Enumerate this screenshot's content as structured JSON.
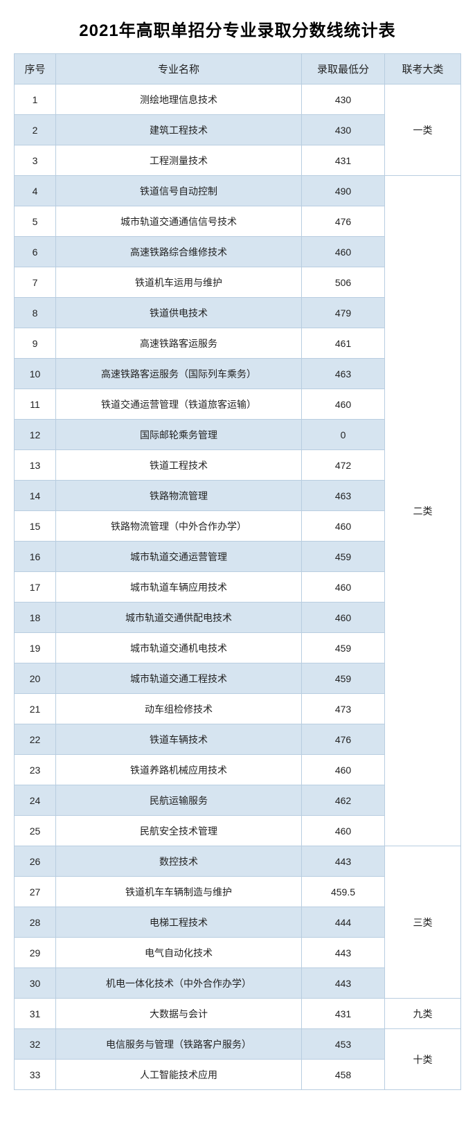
{
  "title": "2021年高职单招分专业录取分数线统计表",
  "headers": {
    "idx": "序号",
    "name": "专业名称",
    "score": "录取最低分",
    "category": "联考大类"
  },
  "colors": {
    "border": "#b8cde0",
    "header_bg": "#d6e4f0",
    "row_even_bg": "#d6e4f0",
    "row_odd_bg": "#ffffff",
    "text": "#222222"
  },
  "categories": [
    {
      "label": "一类",
      "count": 3
    },
    {
      "label": "二类",
      "count": 22
    },
    {
      "label": "三类",
      "count": 5
    },
    {
      "label": "九类",
      "count": 1
    },
    {
      "label": "十类",
      "count": 2
    }
  ],
  "rows": [
    {
      "idx": "1",
      "name": "测绘地理信息技术",
      "score": "430"
    },
    {
      "idx": "2",
      "name": "建筑工程技术",
      "score": "430"
    },
    {
      "idx": "3",
      "name": "工程测量技术",
      "score": "431"
    },
    {
      "idx": "4",
      "name": "铁道信号自动控制",
      "score": "490"
    },
    {
      "idx": "5",
      "name": "城市轨道交通通信信号技术",
      "score": "476"
    },
    {
      "idx": "6",
      "name": "高速铁路综合维修技术",
      "score": "460"
    },
    {
      "idx": "7",
      "name": "铁道机车运用与维护",
      "score": "506"
    },
    {
      "idx": "8",
      "name": "铁道供电技术",
      "score": "479"
    },
    {
      "idx": "9",
      "name": "高速铁路客运服务",
      "score": "461"
    },
    {
      "idx": "10",
      "name": "高速铁路客运服务（国际列车乘务）",
      "score": "463"
    },
    {
      "idx": "11",
      "name": "铁道交通运营管理（铁道旅客运输）",
      "score": "460"
    },
    {
      "idx": "12",
      "name": "国际邮轮乘务管理",
      "score": "0"
    },
    {
      "idx": "13",
      "name": "铁道工程技术",
      "score": "472"
    },
    {
      "idx": "14",
      "name": "铁路物流管理",
      "score": "463"
    },
    {
      "idx": "15",
      "name": "铁路物流管理（中外合作办学）",
      "score": "460"
    },
    {
      "idx": "16",
      "name": "城市轨道交通运营管理",
      "score": "459"
    },
    {
      "idx": "17",
      "name": "城市轨道车辆应用技术",
      "score": "460"
    },
    {
      "idx": "18",
      "name": "城市轨道交通供配电技术",
      "score": "460"
    },
    {
      "idx": "19",
      "name": "城市轨道交通机电技术",
      "score": "459"
    },
    {
      "idx": "20",
      "name": "城市轨道交通工程技术",
      "score": "459"
    },
    {
      "idx": "21",
      "name": "动车组检修技术",
      "score": "473"
    },
    {
      "idx": "22",
      "name": "铁道车辆技术",
      "score": "476"
    },
    {
      "idx": "23",
      "name": "铁道养路机械应用技术",
      "score": "460"
    },
    {
      "idx": "24",
      "name": "民航运输服务",
      "score": "462"
    },
    {
      "idx": "25",
      "name": "民航安全技术管理",
      "score": "460"
    },
    {
      "idx": "26",
      "name": "数控技术",
      "score": "443"
    },
    {
      "idx": "27",
      "name": "铁道机车车辆制造与维护",
      "score": "459.5"
    },
    {
      "idx": "28",
      "name": "电梯工程技术",
      "score": "444"
    },
    {
      "idx": "29",
      "name": "电气自动化技术",
      "score": "443"
    },
    {
      "idx": "30",
      "name": "机电一体化技术（中外合作办学）",
      "score": "443"
    },
    {
      "idx": "31",
      "name": "大数据与会计",
      "score": "431"
    },
    {
      "idx": "32",
      "name": "电信服务与管理（铁路客户服务）",
      "score": "453"
    },
    {
      "idx": "33",
      "name": "人工智能技术应用",
      "score": "458"
    }
  ]
}
